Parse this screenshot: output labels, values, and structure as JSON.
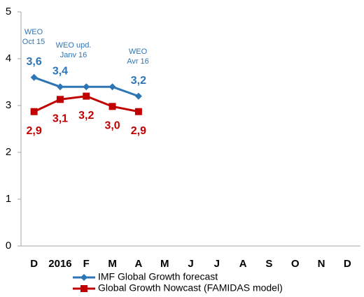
{
  "chart_data": {
    "type": "line",
    "categories": [
      "D",
      "2016",
      "F",
      "M",
      "A",
      "M",
      "J",
      "J",
      "A",
      "S",
      "O",
      "N",
      "D"
    ],
    "series": [
      {
        "name": "IMF Global Growth forecast",
        "color": "#2e75b6",
        "marker": "diamond",
        "values": [
          3.6,
          3.4,
          3.4,
          3.4,
          3.2,
          null,
          null,
          null,
          null,
          null,
          null,
          null,
          null
        ],
        "value_labels": [
          "3,6",
          "3,4",
          null,
          null,
          "3,2",
          null,
          null,
          null,
          null,
          null,
          null,
          null,
          null
        ]
      },
      {
        "name": "Global Growth Nowcast (FAMIDAS model)",
        "color": "#c00000",
        "marker": "square",
        "values": [
          2.87,
          3.13,
          3.2,
          2.98,
          2.87,
          null,
          null,
          null,
          null,
          null,
          null,
          null,
          null
        ],
        "value_labels": [
          "2,9",
          "3,1",
          "3,2",
          "3,0",
          "2,9",
          null,
          null,
          null,
          null,
          null,
          null,
          null,
          null
        ]
      }
    ],
    "annotations": [
      [
        "WEO",
        "Oct 15"
      ],
      [
        "WEO upd.",
        "Janv 16"
      ],
      [
        "WEO",
        "Avr 16"
      ]
    ],
    "ylim": [
      0,
      5
    ],
    "yticks": [
      0,
      1,
      2,
      3,
      4,
      5
    ],
    "grid": false,
    "legend": "bottom"
  }
}
